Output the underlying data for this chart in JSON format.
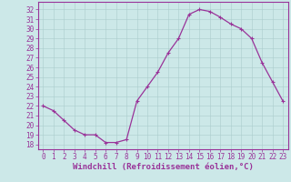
{
  "x": [
    0,
    1,
    2,
    3,
    4,
    5,
    6,
    7,
    8,
    9,
    10,
    11,
    12,
    13,
    14,
    15,
    16,
    17,
    18,
    19,
    20,
    21,
    22,
    23
  ],
  "y": [
    22.0,
    21.5,
    20.5,
    19.5,
    19.0,
    19.0,
    18.2,
    18.2,
    18.5,
    22.5,
    24.0,
    25.5,
    27.5,
    29.0,
    31.5,
    32.0,
    31.8,
    31.2,
    30.5,
    30.0,
    29.0,
    26.5,
    24.5,
    22.5
  ],
  "line_color": "#993399",
  "marker": "+",
  "marker_size": 3,
  "linewidth": 0.9,
  "bg_color": "#cce8e8",
  "plot_bg_color": "#cce8e8",
  "grid_color": "#aacccc",
  "xlabel": "Windchill (Refroidissement éolien,°C)",
  "ylabel": "",
  "title": "",
  "xlim": [
    -0.5,
    23.5
  ],
  "ylim": [
    17.5,
    32.8
  ],
  "yticks": [
    18,
    19,
    20,
    21,
    22,
    23,
    24,
    25,
    26,
    27,
    28,
    29,
    30,
    31,
    32
  ],
  "xticks": [
    0,
    1,
    2,
    3,
    4,
    5,
    6,
    7,
    8,
    9,
    10,
    11,
    12,
    13,
    14,
    15,
    16,
    17,
    18,
    19,
    20,
    21,
    22,
    23
  ],
  "tick_label_fontsize": 5.5,
  "xlabel_fontsize": 6.5,
  "tick_color": "#993399",
  "label_color": "#993399",
  "spine_color": "#993399"
}
